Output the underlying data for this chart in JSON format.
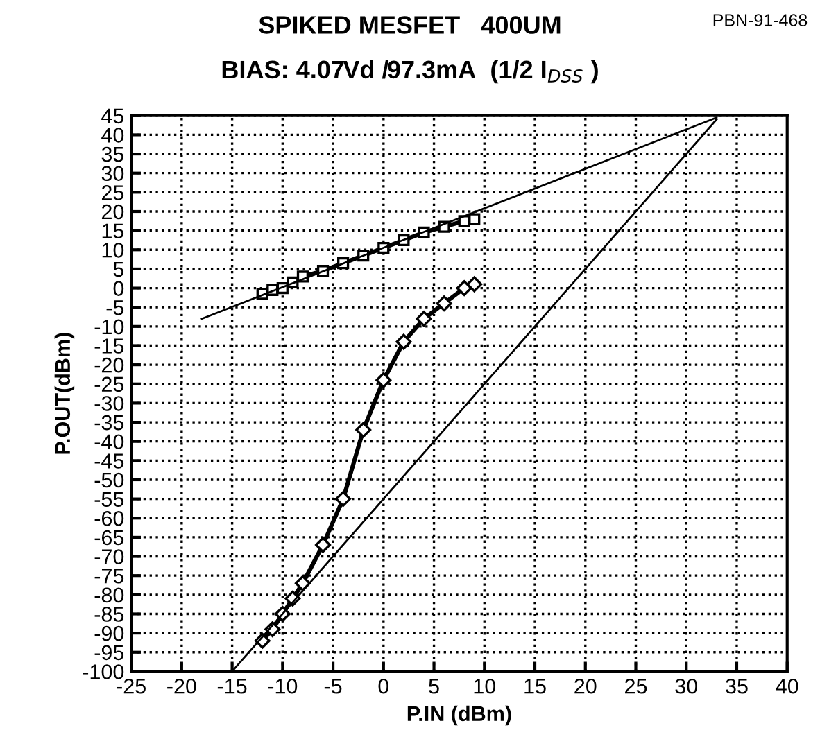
{
  "chart_data": {
    "type": "line",
    "title": "SPIKED MESFET   400UM",
    "subtitle": "BIAS: 4.07Vd /97.3mA  (1/2 I$_{DSS}$ )",
    "xlabel": "P.IN (dBm)",
    "ylabel": "P.OUT(dBm)",
    "annotations": [
      "PBN-91-468"
    ],
    "series": [
      {
        "color": "#000000",
        "marker": "square",
        "x": [
          -12,
          -11,
          -10,
          -9,
          -8,
          -6,
          -4,
          -2,
          0,
          2,
          4,
          6,
          8,
          9
        ],
        "values": [
          -1.5,
          -0.5,
          0,
          1.5,
          3,
          4.5,
          6.5,
          8.5,
          10.5,
          12.5,
          14.5,
          16,
          17.5,
          18
        ]
      },
      {
        "color": "#000000",
        "marker": "none",
        "x": [
          -18,
          33
        ],
        "values": [
          -8,
          44.5
        ]
      },
      {
        "color": "#000000",
        "marker": "diamond",
        "x": [
          -12,
          -11,
          -10,
          -9,
          -8,
          -6,
          -4,
          -2,
          0,
          2,
          4,
          6,
          8,
          9
        ],
        "values": [
          -92,
          -89,
          -85,
          -81,
          -77,
          -67,
          -55,
          -37,
          -24,
          -14,
          -8,
          -4,
          0,
          1
        ]
      },
      {
        "color": "#000000",
        "marker": "none",
        "x": [
          -15,
          33
        ],
        "values": [
          -100,
          44
        ]
      }
    ],
    "xlim": [
      -25,
      40
    ],
    "xticks": [
      -25,
      -20,
      -15,
      -10,
      -5,
      0,
      5,
      10,
      15,
      20,
      25,
      30,
      35,
      40
    ],
    "ylim": [
      -100,
      45
    ],
    "yticks": [
      -100,
      -95,
      -90,
      -85,
      -80,
      -75,
      -70,
      -65,
      -60,
      -55,
      -50,
      -45,
      -40,
      -35,
      -30,
      -25,
      -20,
      -15,
      -10,
      -5,
      0,
      5,
      10,
      15,
      20,
      25,
      30,
      35,
      40,
      45
    ],
    "grid": true,
    "line_style": "solid",
    "legend": false
  }
}
